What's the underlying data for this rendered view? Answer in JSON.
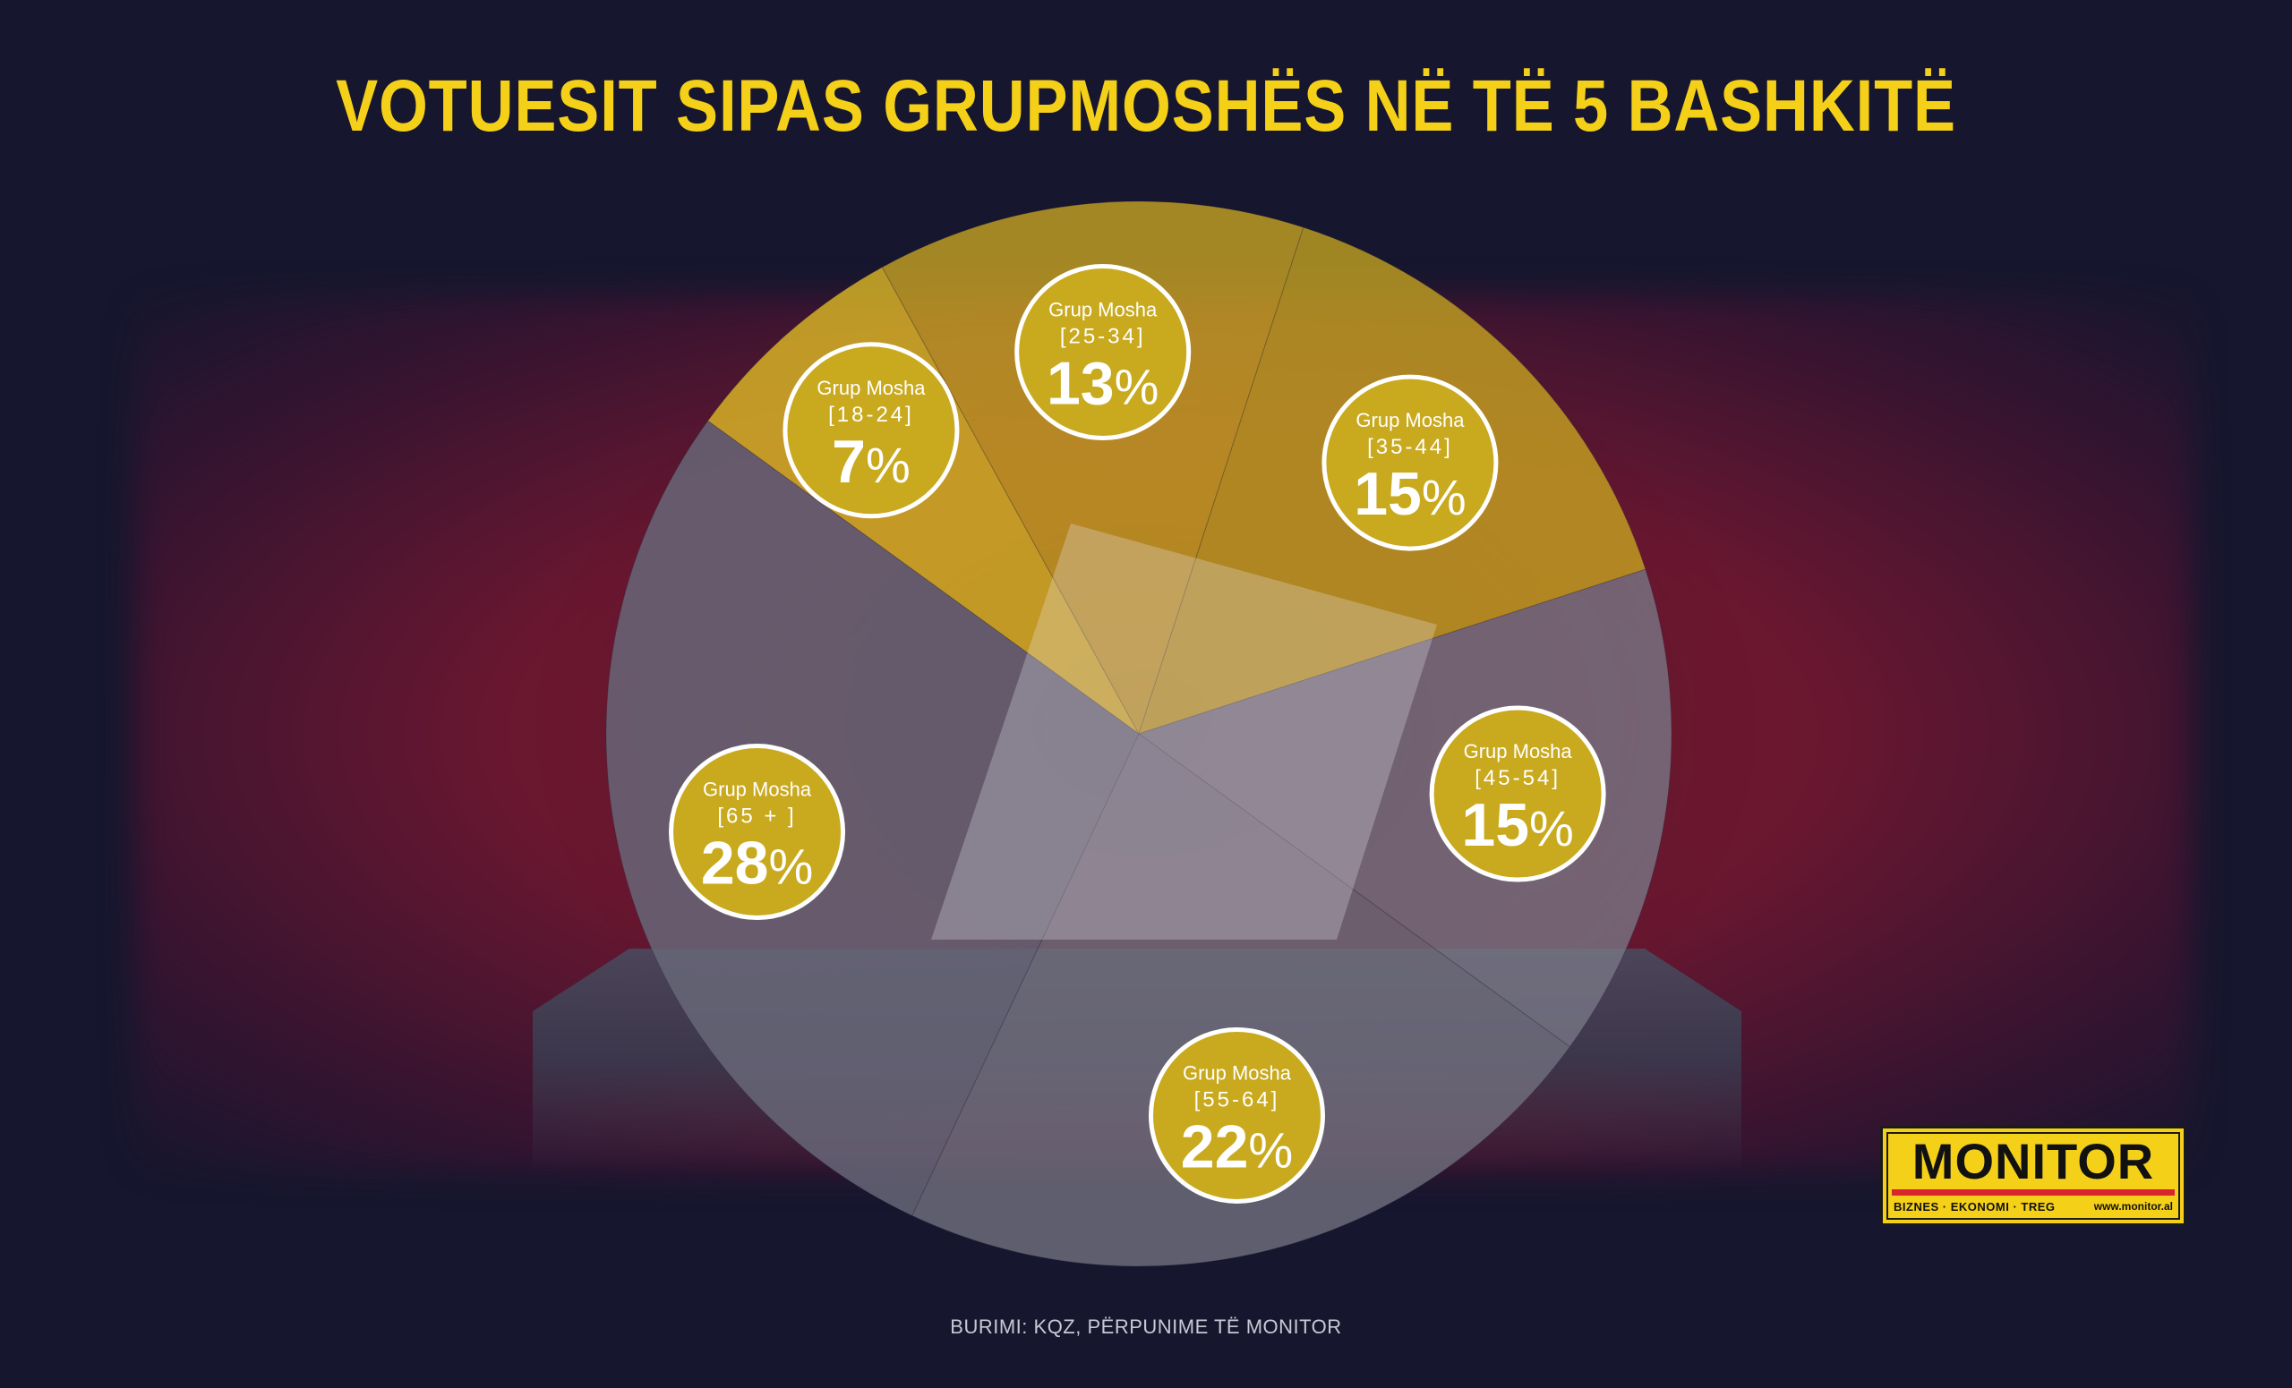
{
  "title": "VOTUESIT SIPAS GRUPMOSHËS NË TË 5 BASHKITË",
  "source": "BURIMI: KQZ, PËRPUNIME TË MONITOR",
  "logo": {
    "word": "MONITOR",
    "tagline": "BIZNES · EKONOMI · TREG",
    "url": "www.monitor.al"
  },
  "colors": {
    "title": "#f5d019",
    "badge": "#c9a91e",
    "gray_slices": "#7a7a88",
    "yellow_slices": "#d9b62a"
  },
  "chart_data": {
    "type": "pie",
    "title": "VOTUESIT SIPAS GRUPMOSHËS NË TË 5 BASHKITË",
    "unit": "%",
    "slices": [
      {
        "group_label": "Grup Mosha",
        "range": "[18-24]",
        "value": 7,
        "value_text": "7",
        "tone": "yellow"
      },
      {
        "group_label": "Grup Mosha",
        "range": "[25-34]",
        "value": 13,
        "value_text": "13",
        "tone": "yellow"
      },
      {
        "group_label": "Grup Mosha",
        "range": "[35-44]",
        "value": 15,
        "value_text": "15",
        "tone": "yellow"
      },
      {
        "group_label": "Grup Mosha",
        "range": "[45-54]",
        "value": 15,
        "value_text": "15",
        "tone": "gray"
      },
      {
        "group_label": "Grup Mosha",
        "range": "[55-64]",
        "value": 22,
        "value_text": "22",
        "tone": "gray"
      },
      {
        "group_label": "Grup Mosha",
        "range": "[65 + ]",
        "value": 28,
        "value_text": "28",
        "tone": "gray"
      }
    ]
  }
}
